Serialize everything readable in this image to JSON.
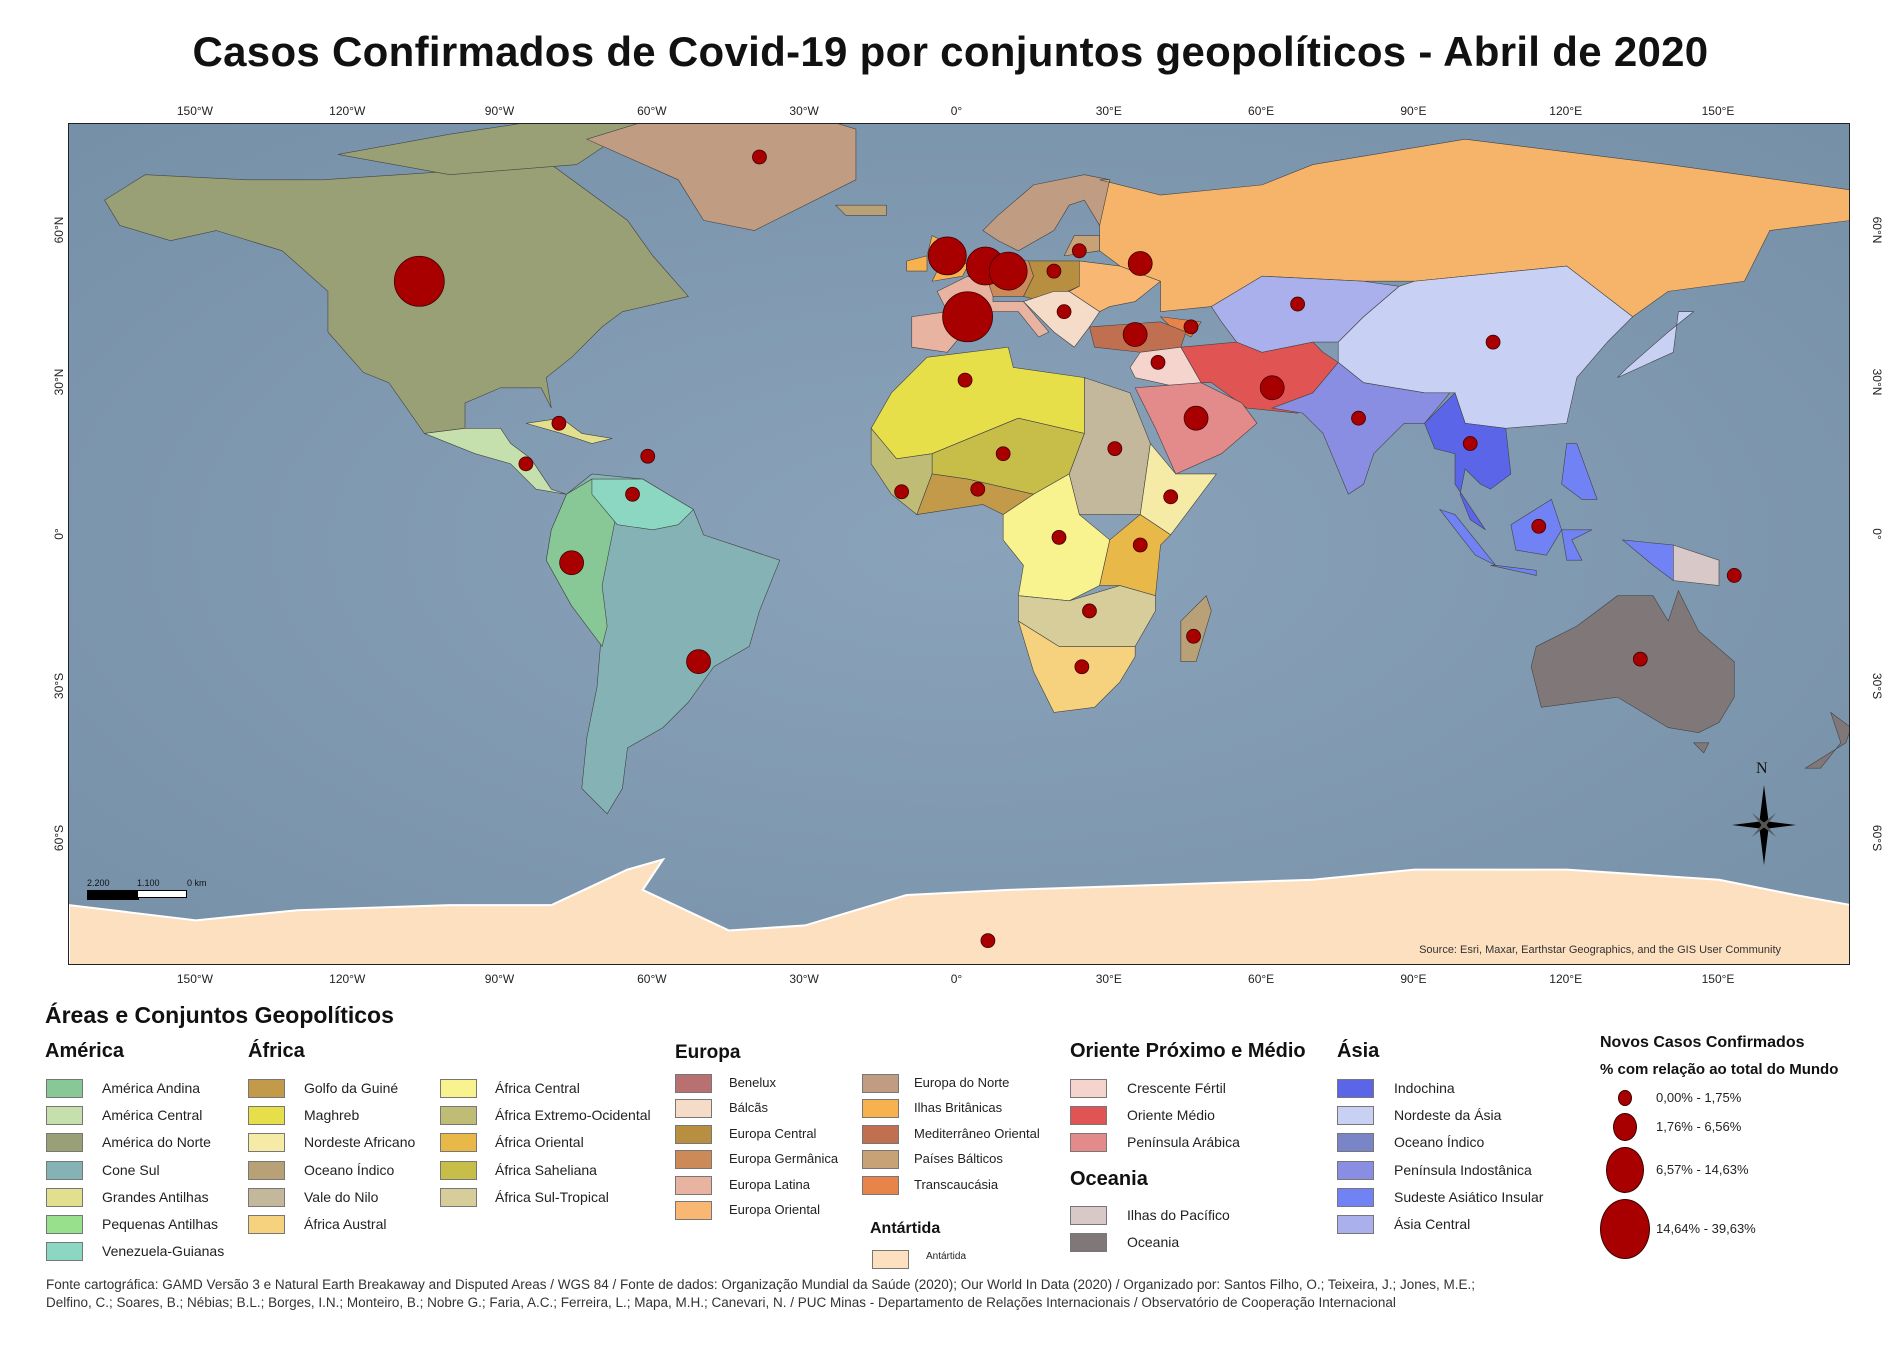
{
  "title": "Casos Confirmados de Covid-19 por conjuntos geopolíticos - Abril de 2020",
  "map": {
    "lon_ticks": [
      {
        "deg": -150,
        "label": "150°W"
      },
      {
        "deg": -120,
        "label": "120°W"
      },
      {
        "deg": -90,
        "label": "90°W"
      },
      {
        "deg": -60,
        "label": "60°W"
      },
      {
        "deg": -30,
        "label": "30°W"
      },
      {
        "deg": 0,
        "label": "0°"
      },
      {
        "deg": 30,
        "label": "30°E"
      },
      {
        "deg": 60,
        "label": "60°E"
      },
      {
        "deg": 90,
        "label": "90°E"
      },
      {
        "deg": 120,
        "label": "120°E"
      },
      {
        "deg": 150,
        "label": "150°E"
      }
    ],
    "lat_ticks": [
      {
        "deg": 60,
        "label": "60°N"
      },
      {
        "deg": 30,
        "label": "30°N"
      },
      {
        "deg": 0,
        "label": "0°"
      },
      {
        "deg": -30,
        "label": "30°S"
      },
      {
        "deg": -60,
        "label": "60°S"
      }
    ],
    "ocean_color": "#7f98b0",
    "source": "Source: Esri, Maxar, Earthstar Geographics, and the GIS User Community",
    "north_label": "N",
    "scale_labels": [
      "2.200",
      "1.100",
      "0 km"
    ],
    "bubble_color": "#a80000",
    "bubbles": [
      {
        "lon": -106,
        "lat": 50,
        "class": 4
      },
      {
        "lon": 2,
        "lat": 43,
        "class": 4
      },
      {
        "lon": -2,
        "lat": 55,
        "class": 3
      },
      {
        "lon": 5.5,
        "lat": 53,
        "class": 3
      },
      {
        "lon": 10,
        "lat": 52,
        "class": 3
      },
      {
        "lon": 19,
        "lat": 52,
        "class": 1
      },
      {
        "lon": 24,
        "lat": 56,
        "class": 1
      },
      {
        "lon": 21,
        "lat": 44,
        "class": 1
      },
      {
        "lon": 36,
        "lat": 53.5,
        "class": 2
      },
      {
        "lon": 35,
        "lat": 39.5,
        "class": 2
      },
      {
        "lon": 46,
        "lat": 41,
        "class": 1
      },
      {
        "lon": 39.5,
        "lat": 34,
        "class": 1
      },
      {
        "lon": 62,
        "lat": 29,
        "class": 2
      },
      {
        "lon": 47,
        "lat": 23,
        "class": 2
      },
      {
        "lon": 67,
        "lat": 45.5,
        "class": 1
      },
      {
        "lon": 105.5,
        "lat": 38,
        "class": 1
      },
      {
        "lon": 79,
        "lat": 23,
        "class": 1
      },
      {
        "lon": 101,
        "lat": 18,
        "class": 1
      },
      {
        "lon": 114.5,
        "lat": 1.7,
        "class": 1
      },
      {
        "lon": 153,
        "lat": -8,
        "class": 1
      },
      {
        "lon": 134.5,
        "lat": -24.5,
        "class": 1
      },
      {
        "lon": -39,
        "lat": 74.5,
        "class": 1
      },
      {
        "lon": 6,
        "lat": -80,
        "class": 1
      },
      {
        "lon": -78.5,
        "lat": 22,
        "class": 1
      },
      {
        "lon": -85,
        "lat": 14,
        "class": 1
      },
      {
        "lon": -61,
        "lat": 15.5,
        "class": 1
      },
      {
        "lon": -64,
        "lat": 8,
        "class": 1
      },
      {
        "lon": -76,
        "lat": -5.5,
        "class": 2
      },
      {
        "lon": -51,
        "lat": -25,
        "class": 2
      },
      {
        "lon": 1.5,
        "lat": 30.5,
        "class": 1
      },
      {
        "lon": 9,
        "lat": 16,
        "class": 1
      },
      {
        "lon": -11,
        "lat": 8.5,
        "class": 1
      },
      {
        "lon": 4,
        "lat": 9,
        "class": 1
      },
      {
        "lon": 31,
        "lat": 17,
        "class": 1
      },
      {
        "lon": 42,
        "lat": 7.5,
        "class": 1
      },
      {
        "lon": 20,
        "lat": -0.5,
        "class": 1
      },
      {
        "lon": 36,
        "lat": -2,
        "class": 1
      },
      {
        "lon": 26,
        "lat": -15,
        "class": 1
      },
      {
        "lon": 24.5,
        "lat": -26,
        "class": 1
      },
      {
        "lon": 46.5,
        "lat": -20,
        "class": 1
      }
    ]
  },
  "legend": {
    "title": "Áreas e Conjuntos Geopolíticos",
    "america": {
      "title": "América",
      "items": [
        {
          "label": "América Andina",
          "color": "#88c897"
        },
        {
          "label": "América Central",
          "color": "#c5e0ad"
        },
        {
          "label": "América do Norte",
          "color": "#9aa075"
        },
        {
          "label": "Cone Sul",
          "color": "#85b3b5"
        },
        {
          "label": "Grandes Antilhas",
          "color": "#e2e08e"
        },
        {
          "label": "Pequenas Antilhas",
          "color": "#98e08c"
        },
        {
          "label": "Venezuela-Guianas",
          "color": "#8bd7c1"
        }
      ]
    },
    "africa": {
      "title": "África",
      "items": [
        {
          "label": "Golfo da Guiné",
          "color": "#c29a4a"
        },
        {
          "label": "Maghreb",
          "color": "#e7df4a"
        },
        {
          "label": "Nordeste Africano",
          "color": "#f5eba6"
        },
        {
          "label": "Oceano Índico",
          "color": "#b8a077"
        },
        {
          "label": "Vale do Nilo",
          "color": "#c4b89c"
        },
        {
          "label": "África Austral",
          "color": "#f7d27e"
        },
        {
          "label": "África Central",
          "color": "#f8f38e"
        },
        {
          "label": "África Extremo-Ocidental",
          "color": "#bfbd75"
        },
        {
          "label": "África Oriental",
          "color": "#e8b848"
        },
        {
          "label": "África Saheliana",
          "color": "#c7be4a"
        },
        {
          "label": "África Sul-Tropical",
          "color": "#d6cd9b"
        }
      ]
    },
    "europa": {
      "title": "Europa",
      "items": [
        {
          "label": "Benelux",
          "color": "#b87070"
        },
        {
          "label": "Bálcãs",
          "color": "#f5dcc9"
        },
        {
          "label": "Europa Central",
          "color": "#b88e40"
        },
        {
          "label": "Europa Germânica",
          "color": "#cc8a58"
        },
        {
          "label": "Europa Latina",
          "color": "#e8b3a0"
        },
        {
          "label": "Europa Oriental",
          "color": "#f8b874"
        },
        {
          "label": "Europa do Norte",
          "color": "#c09c82"
        },
        {
          "label": "Ilhas Britânicas",
          "color": "#f7b24f"
        },
        {
          "label": "Mediterrâneo Oriental",
          "color": "#c07050"
        },
        {
          "label": "Países Bálticos",
          "color": "#c6a276"
        },
        {
          "label": "Transcaucásia",
          "color": "#e8834a"
        }
      ]
    },
    "antartida": {
      "title": "Antártida",
      "items": [
        {
          "label": "Antártida",
          "color": "#fde0c0"
        }
      ]
    },
    "oriente": {
      "title": "Oriente Próximo e Médio",
      "items": [
        {
          "label": "Crescente Fértil",
          "color": "#f4d4cd"
        },
        {
          "label": "Oriente Médio",
          "color": "#e05454"
        },
        {
          "label": "Península Arábica",
          "color": "#e38a8a"
        }
      ]
    },
    "oceania": {
      "title": "Oceania",
      "items": [
        {
          "label": "Ilhas do Pacífico",
          "color": "#d8c8c8"
        },
        {
          "label": "Oceania",
          "color": "#807878"
        }
      ]
    },
    "asia": {
      "title": "Ásia",
      "items": [
        {
          "label": "Indochina",
          "color": "#5a65e8"
        },
        {
          "label": "Nordeste da Ásia",
          "color": "#c8d0f4"
        },
        {
          "label": "Oceano Índico",
          "color": "#7a85c8"
        },
        {
          "label": "Península Indostânica",
          "color": "#8a8ee2"
        },
        {
          "label": "Sudeste Asiático Insular",
          "color": "#7082f4"
        },
        {
          "label": "Ásia Central",
          "color": "#aab0ec"
        }
      ]
    },
    "cases": {
      "title": "Novos Casos Confirmados",
      "subtitle": "% com relação ao total do Mundo",
      "classes": [
        {
          "label": "0,00% - 1,75%"
        },
        {
          "label": "1,76% - 6,56%"
        },
        {
          "label": "6,57% - 14,63%"
        },
        {
          "label": "14,64% - 39,63%"
        }
      ]
    }
  },
  "footer": [
    "Fonte cartográfica: GAMD Versão 3 e Natural Earth Breakaway and Disputed Areas / WGS 84 / Fonte de dados: Organização Mundial da Saúde (2020); Our World In Data (2020) / Organizado por: Santos Filho, O.; Teixeira, J.; Jones, M.E.;",
    "Delfino, C.; Soares, B.; Nébias; B.L.; Borges, I.N.; Monteiro, B.; Nobre G.; Faria, A.C.; Ferreira, L.; Mapa, M.H.; Canevari, N. / PUC Minas - Departamento de Relações Internacionais / Observatório de Cooperação Internacional"
  ]
}
